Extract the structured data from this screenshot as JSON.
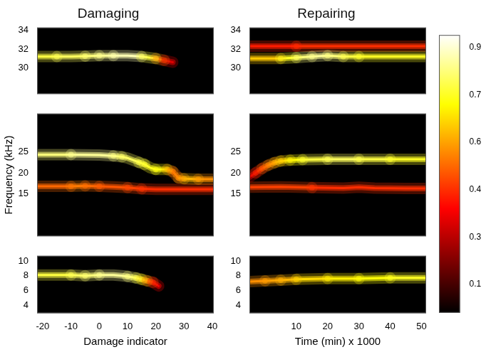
{
  "chart_data": [
    {
      "type": "heatmap",
      "title": "Damaging",
      "xlim": [
        -22,
        40.5
      ],
      "ylim": [
        27.2,
        34.3
      ],
      "yticks": [
        30,
        32,
        34
      ],
      "tick_labels": "y",
      "ridges": [
        {
          "x": [
            -22,
            -15,
            -10,
            -5,
            0,
            5,
            10,
            15,
            20,
            23,
            26
          ],
          "y": [
            31.2,
            31.2,
            31.2,
            31.25,
            31.3,
            31.3,
            31.3,
            31.2,
            31.0,
            30.8,
            30.6
          ],
          "intensity": [
            0.75,
            0.8,
            0.8,
            0.8,
            0.85,
            0.85,
            0.9,
            0.85,
            0.7,
            0.45,
            0.25
          ]
        }
      ]
    },
    {
      "type": "heatmap",
      "y_label": "Frequency (kHz)",
      "xlim": [
        -22,
        40.5
      ],
      "ylim": [
        5,
        34
      ],
      "yticks": [
        15,
        20,
        25
      ],
      "tick_labels": "y",
      "ridges": [
        {
          "x": [
            -22,
            -10,
            0,
            5,
            8,
            10,
            12,
            14,
            16,
            18,
            20,
            24,
            26,
            28,
            30,
            35,
            40.5
          ],
          "y": [
            24.3,
            24.3,
            24.2,
            24.0,
            23.8,
            23.5,
            23.0,
            22.5,
            22.0,
            21.2,
            20.8,
            20.8,
            20.3,
            18.8,
            18.6,
            18.5,
            18.5
          ],
          "intensity": [
            0.8,
            0.85,
            0.85,
            0.85,
            0.8,
            0.8,
            0.8,
            0.8,
            0.75,
            0.75,
            0.75,
            0.7,
            0.5,
            0.55,
            0.65,
            0.6,
            0.55
          ]
        },
        {
          "x": [
            -22,
            -10,
            -5,
            0,
            5,
            10,
            15,
            20,
            30,
            40.5
          ],
          "y": [
            16.8,
            16.8,
            16.9,
            16.8,
            16.7,
            16.5,
            16.2,
            16.1,
            16.1,
            16.1
          ],
          "intensity": [
            0.5,
            0.55,
            0.55,
            0.5,
            0.5,
            0.5,
            0.45,
            0.45,
            0.45,
            0.45
          ]
        }
      ]
    },
    {
      "type": "heatmap",
      "x_label": "Damage indicator",
      "xlim": [
        -22,
        40.5
      ],
      "xticks": [
        -20,
        -10,
        0,
        10,
        20,
        30,
        40
      ],
      "ylim": [
        2.9,
        10.7
      ],
      "yticks": [
        4,
        6,
        8,
        10
      ],
      "ridges": [
        {
          "x": [
            -22,
            -10,
            -5,
            0,
            5,
            8,
            10,
            13,
            15,
            17,
            19,
            21
          ],
          "y": [
            8.1,
            8.1,
            8.0,
            8.1,
            8.1,
            8.0,
            7.9,
            7.7,
            7.5,
            7.3,
            7.1,
            6.6
          ],
          "intensity": [
            0.75,
            0.8,
            0.8,
            0.85,
            0.85,
            0.85,
            0.85,
            0.8,
            0.75,
            0.6,
            0.45,
            0.3
          ]
        }
      ]
    },
    {
      "type": "heatmap",
      "title": "Repairing",
      "xlim": [
        -5,
        51.5
      ],
      "ylim": [
        27.2,
        34.3
      ],
      "yticks": [
        30,
        32,
        34
      ],
      "tick_labels": "y",
      "ridges": [
        {
          "x": [
            -5,
            5,
            10,
            15,
            20,
            25,
            30,
            35,
            40,
            45,
            51.5
          ],
          "y": [
            31.0,
            31.0,
            31.1,
            31.2,
            31.3,
            31.2,
            31.2,
            31.2,
            31.2,
            31.2,
            31.2
          ],
          "intensity": [
            0.6,
            0.7,
            0.8,
            0.85,
            0.85,
            0.8,
            0.75,
            0.75,
            0.75,
            0.75,
            0.75
          ]
        },
        {
          "x": [
            -5,
            10,
            20,
            30,
            40,
            51.5
          ],
          "y": [
            32.3,
            32.3,
            32.3,
            32.3,
            32.3,
            32.3
          ],
          "intensity": [
            0.4,
            0.45,
            0.45,
            0.45,
            0.45,
            0.45
          ]
        }
      ]
    },
    {
      "type": "heatmap",
      "xlim": [
        -5,
        51.5
      ],
      "ylim": [
        5,
        34
      ],
      "yticks": [
        15,
        20,
        25
      ],
      "tick_labels": "y",
      "ridges": [
        {
          "x": [
            -5,
            -3,
            -1,
            1,
            3,
            5,
            8,
            12,
            20,
            30,
            40,
            51.5
          ],
          "y": [
            19.0,
            20.0,
            21.0,
            21.8,
            22.4,
            22.8,
            23.0,
            23.1,
            23.2,
            23.2,
            23.2,
            23.2
          ],
          "intensity": [
            0.3,
            0.4,
            0.5,
            0.55,
            0.6,
            0.65,
            0.7,
            0.75,
            0.8,
            0.8,
            0.75,
            0.75
          ]
        },
        {
          "x": [
            -5,
            5,
            15,
            25,
            30,
            35,
            45,
            51.5
          ],
          "y": [
            16.6,
            16.7,
            16.5,
            16.4,
            16.6,
            16.4,
            16.3,
            16.3
          ],
          "intensity": [
            0.45,
            0.5,
            0.45,
            0.45,
            0.45,
            0.45,
            0.45,
            0.45
          ]
        }
      ]
    },
    {
      "type": "heatmap",
      "x_label": "Time (min) x 1000",
      "xlim": [
        -5,
        51.5
      ],
      "xticks": [
        10,
        20,
        30,
        40,
        50
      ],
      "ylim": [
        2.9,
        10.7
      ],
      "yticks": [
        4,
        6,
        8,
        10
      ],
      "ridges": [
        {
          "x": [
            -5,
            0,
            5,
            10,
            20,
            30,
            40,
            51.5
          ],
          "y": [
            7.2,
            7.3,
            7.4,
            7.5,
            7.6,
            7.6,
            7.7,
            7.7
          ],
          "intensity": [
            0.55,
            0.6,
            0.6,
            0.65,
            0.7,
            0.7,
            0.75,
            0.75
          ]
        }
      ]
    }
  ],
  "colorbar": {
    "ylim": [
      0.06,
      0.94
    ],
    "yticks": [
      0.15,
      {
        "value": 0.3,
        "label": "0.30"
      },
      0.45,
      {
        "value": 0.6,
        "label": "0.60"
      },
      0.75,
      {
        "value": 0.9,
        "label": "0.90"
      }
    ]
  }
}
